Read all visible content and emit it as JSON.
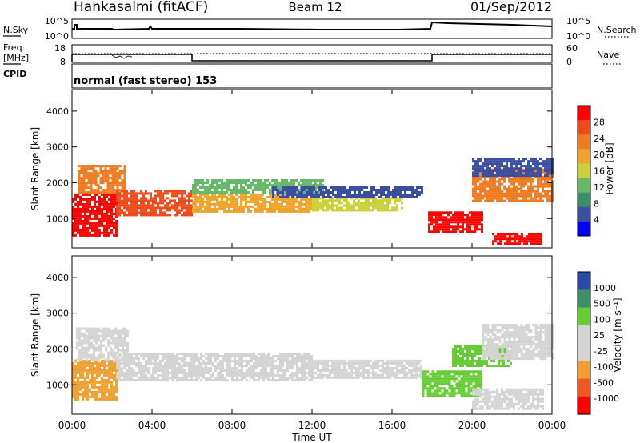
{
  "header": {
    "station": "Hankasalmi (fitACF)",
    "beam": "Beam 12",
    "date": "01/Sep/2012"
  },
  "top_panels": {
    "nsky_label": "N.Sky",
    "nsearch_label": "N.Search",
    "freq_label": "Freq.",
    "freq_unit": "[MHz]",
    "nave_label": "Nave",
    "cpid_label": "CPID",
    "cpid_value": "normal (fast stereo) 153",
    "noise_ticks_left": [
      "10^5",
      "10^0"
    ],
    "noise_ticks_right": [
      "10^5",
      "10^0"
    ],
    "freq_ticks_left": [
      "18",
      "8"
    ],
    "nave_ticks_right": [
      "60",
      "0"
    ]
  },
  "colors": {
    "power_scale": [
      "#0000ff",
      "#3a4fa0",
      "#3d8c6a",
      "#68b86a",
      "#c9d136",
      "#f0a32a",
      "#f07a20",
      "#f04a1a",
      "#ff0000"
    ],
    "velocity_scale": [
      "#ff0000",
      "#f05a20",
      "#f0a030",
      "#d4d4d4",
      "#d4d4d4",
      "#66cc33",
      "#3d8c6a",
      "#2a4aa8"
    ],
    "ground_scatter": "#bbbbbb"
  },
  "chart_data": [
    {
      "type": "heatmap",
      "name": "Power",
      "ylabel": "Slant Range [km]",
      "colorbar_label": "Power [dB]",
      "colorbar_ticks": [
        "28",
        "24",
        "20",
        "16",
        "12",
        "8",
        "4"
      ],
      "ylim": [
        180,
        4600
      ],
      "yticks": [
        1000,
        2000,
        3000,
        4000
      ],
      "xlim": [
        0,
        24
      ],
      "xticks": [
        "00:00",
        "04:00",
        "08:00",
        "12:00",
        "16:00",
        "20:00",
        "00:00"
      ],
      "xlabel": "Time UT",
      "regions": [
        {
          "t0": 0.0,
          "t1": 2.2,
          "r0": 500,
          "r1": 1700,
          "color": "#ff0000"
        },
        {
          "t0": 0.3,
          "t1": 2.6,
          "r0": 1700,
          "r1": 2500,
          "color": "#f07a20"
        },
        {
          "t0": 2.2,
          "t1": 6.0,
          "r0": 1100,
          "r1": 1800,
          "color": "#f04a1a"
        },
        {
          "t0": 6.0,
          "t1": 12.0,
          "r0": 1200,
          "r1": 1700,
          "color": "#f0a32a"
        },
        {
          "t0": 6.0,
          "t1": 12.5,
          "r0": 1700,
          "r1": 2100,
          "color": "#68b86a"
        },
        {
          "t0": 12.0,
          "t1": 16.5,
          "r0": 1250,
          "r1": 1600,
          "color": "#c9d136"
        },
        {
          "t0": 10.0,
          "t1": 17.5,
          "r0": 1600,
          "r1": 1900,
          "color": "#3a4fa0"
        },
        {
          "t0": 17.8,
          "t1": 20.5,
          "r0": 600,
          "r1": 1200,
          "color": "#ff0000"
        },
        {
          "t0": 20.0,
          "t1": 24.0,
          "r0": 1500,
          "r1": 2400,
          "color": "#f07a20"
        },
        {
          "t0": 20.0,
          "t1": 24.0,
          "r0": 2200,
          "r1": 2700,
          "color": "#3a4fa0"
        },
        {
          "t0": 21.0,
          "t1": 23.5,
          "r0": 300,
          "r1": 600,
          "color": "#ff0000"
        }
      ]
    },
    {
      "type": "heatmap",
      "name": "Velocity",
      "ylabel": "Slant Range [km]",
      "colorbar_label": "Velocity [m s⁻¹]",
      "colorbar_ticks": [
        "1000",
        "500",
        "100",
        "25",
        "-25",
        "-100",
        "-500",
        "-1000"
      ],
      "ylim": [
        180,
        4600
      ],
      "yticks": [
        1000,
        2000,
        3000,
        4000
      ],
      "xlim": [
        0,
        24
      ],
      "xticks": [
        "00:00",
        "04:00",
        "08:00",
        "12:00",
        "16:00",
        "20:00",
        "00:00"
      ],
      "xlabel": "Time UT",
      "regions": [
        {
          "t0": 0.0,
          "t1": 2.2,
          "r0": 600,
          "r1": 1700,
          "color": "#f0a030"
        },
        {
          "t0": 0.2,
          "t1": 2.8,
          "r0": 1700,
          "r1": 2600,
          "color": "#d4d4d4"
        },
        {
          "t0": 2.2,
          "t1": 12.0,
          "r0": 1100,
          "r1": 1900,
          "color": "#d4d4d4"
        },
        {
          "t0": 12.0,
          "t1": 17.5,
          "r0": 1200,
          "r1": 1700,
          "color": "#d4d4d4"
        },
        {
          "t0": 17.5,
          "t1": 20.5,
          "r0": 700,
          "r1": 1400,
          "color": "#66cc33"
        },
        {
          "t0": 19.0,
          "t1": 22.0,
          "r0": 1500,
          "r1": 2100,
          "color": "#66cc33"
        },
        {
          "t0": 20.5,
          "t1": 24.0,
          "r0": 1700,
          "r1": 2700,
          "color": "#d4d4d4"
        },
        {
          "t0": 20.0,
          "t1": 23.5,
          "r0": 300,
          "r1": 900,
          "color": "#d4d4d4"
        }
      ]
    }
  ]
}
